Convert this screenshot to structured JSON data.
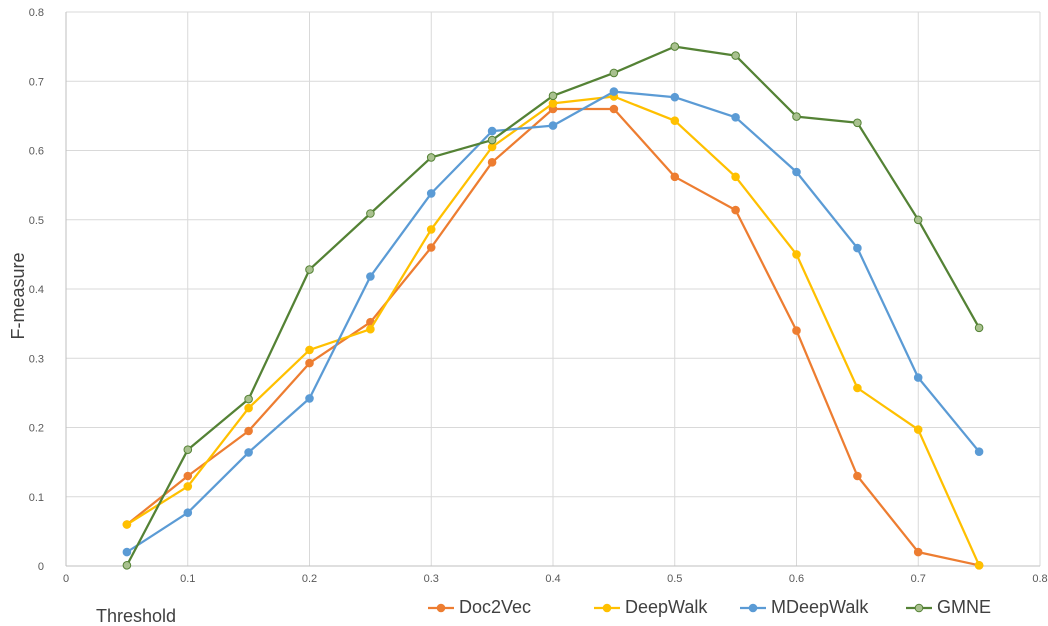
{
  "chart_data": {
    "type": "line",
    "xlabel": "Threshold",
    "ylabel": "F-measure",
    "xlim": [
      0,
      0.8
    ],
    "ylim": [
      0,
      0.8
    ],
    "xticks": [
      "0",
      "0.1",
      "0.2",
      "0.3",
      "0.4",
      "0.5",
      "0.6",
      "0.7",
      "0.8"
    ],
    "yticks": [
      "0",
      "0.1",
      "0.2",
      "0.3",
      "0.4",
      "0.5",
      "0.6",
      "0.7",
      "0.8"
    ],
    "grid": true,
    "legend": "bottom-right",
    "x": [
      0.05,
      0.1,
      0.15,
      0.2,
      0.25,
      0.3,
      0.35,
      0.4,
      0.45,
      0.5,
      0.55,
      0.6,
      0.65,
      0.7,
      0.75
    ],
    "series": [
      {
        "name": "Doc2Vec",
        "color": "#ed7d31",
        "values": [
          0.06,
          0.13,
          0.195,
          0.293,
          0.352,
          0.46,
          0.583,
          0.66,
          0.66,
          0.562,
          0.514,
          0.34,
          0.13,
          0.02,
          0.001
        ]
      },
      {
        "name": "DeepWalk",
        "color": "#ffc000",
        "values": [
          0.06,
          0.115,
          0.228,
          0.312,
          0.342,
          0.486,
          0.605,
          0.668,
          0.678,
          0.643,
          0.562,
          0.45,
          0.257,
          0.197,
          0.001
        ]
      },
      {
        "name": "MDeepWalk",
        "color": "#5b9bd5",
        "values": [
          0.02,
          0.077,
          0.164,
          0.242,
          0.418,
          0.538,
          0.628,
          0.636,
          0.685,
          0.677,
          0.648,
          0.569,
          0.459,
          0.272,
          0.165
        ]
      },
      {
        "name": "GMNE",
        "color": "#548235",
        "marker_color": "#a9c18f",
        "values": [
          0.001,
          0.168,
          0.241,
          0.428,
          0.509,
          0.59,
          0.615,
          0.679,
          0.712,
          0.75,
          0.737,
          0.649,
          0.64,
          0.5,
          0.344
        ]
      }
    ]
  }
}
